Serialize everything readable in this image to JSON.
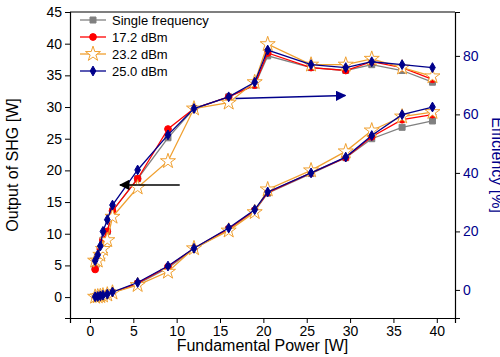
{
  "chart_data": {
    "type": "line",
    "x_label": "Fundamental Power [W]",
    "y_label": "Output of SHG [W]",
    "y2_label": "Efficiency [%]",
    "x": [
      0.6,
      0.9,
      1.2,
      1.5,
      2.0,
      2.6,
      5.5,
      9,
      12,
      16,
      19,
      20.5,
      25.5,
      29.5,
      32.5,
      36,
      39.5
    ],
    "xlim": [
      -2.3,
      42.1
    ],
    "xticks": [
      0,
      5,
      10,
      15,
      20,
      25,
      30,
      35,
      40
    ],
    "ylim": [
      -3.3,
      45
    ],
    "yticks": [
      0,
      5,
      10,
      15,
      20,
      25,
      30,
      35,
      40,
      45
    ],
    "y2lim": [
      -9.6,
      95
    ],
    "y2ticks": [
      0,
      20,
      40,
      60,
      80
    ],
    "legend": "upper-left",
    "series": [
      {
        "name": "Single frequency",
        "color": "#808080",
        "marker": "square",
        "values": [
          0.05,
          0.1,
          0.15,
          0.25,
          0.4,
          0.7,
          2.1,
          4.6,
          7.6,
          10.7,
          13.6,
          16.4,
          19.5,
          22.0,
          25.0,
          26.8,
          27.8
        ]
      },
      {
        "name": "17.2 dBm",
        "color": "#ff0000",
        "marker": "circle",
        "values": [
          0.05,
          0.1,
          0.15,
          0.25,
          0.4,
          0.7,
          2.2,
          4.8,
          7.7,
          10.8,
          13.7,
          16.5,
          19.6,
          22.0,
          25.3,
          28.0,
          28.8
        ]
      },
      {
        "name": "23.2 dBm",
        "color": "#f0a030",
        "marker": "star",
        "values": [
          0.05,
          0.1,
          0.15,
          0.25,
          0.4,
          0.7,
          1.9,
          4.0,
          7.7,
          10.5,
          13.4,
          17.0,
          20.0,
          23.0,
          26.3,
          28.5,
          29.2
        ]
      },
      {
        "name": "25.0 dBm",
        "color": "#00008b",
        "marker": "diamond",
        "values": [
          0.05,
          0.1,
          0.2,
          0.3,
          0.45,
          0.8,
          2.3,
          4.9,
          7.7,
          10.9,
          13.8,
          16.6,
          19.6,
          22.1,
          25.5,
          28.8,
          30.0
        ]
      },
      {
        "name": "Single frequency",
        "color": "#808080",
        "marker": "square",
        "axis": "y2",
        "values": [
          8,
          11,
          13,
          17,
          20,
          27,
          38,
          52,
          62,
          66,
          70,
          80,
          76,
          75,
          77,
          75,
          71
        ]
      },
      {
        "name": "17.2 dBm",
        "color": "#ff0000",
        "marker": "circle",
        "axis": "y2",
        "values": [
          7,
          11,
          14,
          17,
          20,
          27,
          38,
          55,
          62,
          66,
          70,
          81,
          76,
          75,
          78,
          76,
          72
        ]
      },
      {
        "name": "23.2 dBm",
        "color": "#f0a030",
        "marker": "star",
        "axis": "y2",
        "values": [
          10,
          10,
          12,
          14,
          17,
          25,
          35,
          44,
          62,
          64,
          71,
          84,
          77,
          77,
          79,
          76,
          73
        ]
      },
      {
        "name": "25.0 dBm",
        "color": "#00008b",
        "marker": "diamond",
        "axis": "y2",
        "values": [
          10,
          12,
          15,
          20,
          24,
          29,
          41,
          53,
          62,
          66,
          71,
          82,
          77,
          76,
          78,
          77,
          76
        ]
      }
    ]
  }
}
